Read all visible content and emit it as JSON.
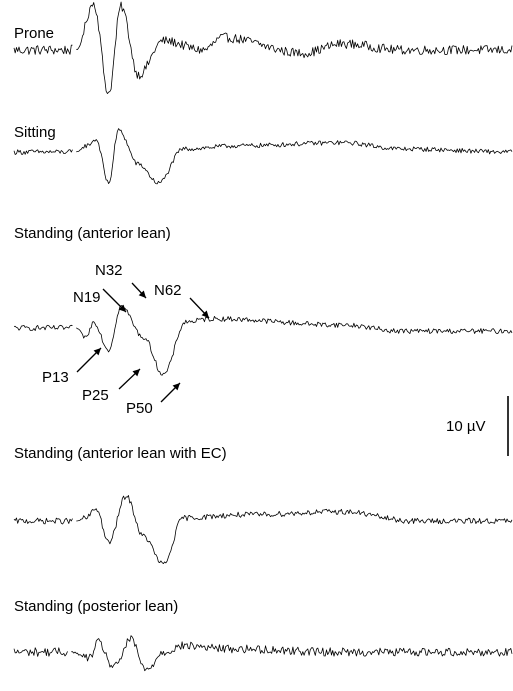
{
  "chart_data": {
    "type": "line",
    "title": "",
    "xlabel": "",
    "ylabel": "",
    "units": "µV",
    "scale_bar": {
      "label": "10 µV",
      "value": 10
    },
    "series": [
      {
        "name": "Prone",
        "baseline": [
          0.0,
          0.12
        ],
        "peaks": [
          [
            0.16,
            15
          ],
          [
            0.19,
            -14
          ],
          [
            0.215,
            14
          ],
          [
            0.25,
            -8
          ],
          [
            0.3,
            3
          ],
          [
            0.38,
            0
          ],
          [
            0.42,
            4
          ],
          [
            0.58,
            -1
          ],
          [
            0.66,
            2
          ],
          [
            0.78,
            0
          ],
          [
            1.0,
            0
          ]
        ],
        "noise": 2.0
      },
      {
        "name": "Sitting",
        "baseline": [
          0.0,
          0.12
        ],
        "peaks": [
          [
            0.145,
            2
          ],
          [
            0.165,
            4
          ],
          [
            0.19,
            -10
          ],
          [
            0.21,
            7
          ],
          [
            0.25,
            -4
          ],
          [
            0.29,
            -10
          ],
          [
            0.34,
            1
          ],
          [
            0.45,
            2
          ],
          [
            0.66,
            3
          ],
          [
            0.78,
            1
          ],
          [
            1.0,
            0
          ]
        ],
        "noise": 1.0
      },
      {
        "name": "Standing (anterior lean)",
        "baseline": [
          0.0,
          0.12
        ],
        "peaks": [
          [
            0.145,
            -3
          ],
          [
            0.16,
            2
          ],
          [
            0.19,
            -7
          ],
          [
            0.215,
            7
          ],
          [
            0.26,
            -3
          ],
          [
            0.3,
            -15
          ],
          [
            0.345,
            2
          ],
          [
            0.4,
            3
          ],
          [
            0.66,
            1
          ],
          [
            0.78,
            -1
          ],
          [
            1.0,
            -1
          ]
        ],
        "noise": 1.1,
        "components": [
          {
            "label": "P13",
            "latency": 13
          },
          {
            "label": "N19",
            "latency": 19
          },
          {
            "label": "P25",
            "latency": 25
          },
          {
            "label": "N32",
            "latency": 32
          },
          {
            "label": "P50",
            "latency": 50
          },
          {
            "label": "N62",
            "latency": 62
          }
        ]
      },
      {
        "name": "Standing (anterior lean with EC)",
        "baseline": [
          0.0,
          0.12
        ],
        "peaks": [
          [
            0.145,
            1
          ],
          [
            0.165,
            4
          ],
          [
            0.19,
            -7
          ],
          [
            0.225,
            8
          ],
          [
            0.26,
            -5
          ],
          [
            0.3,
            -14
          ],
          [
            0.34,
            1
          ],
          [
            0.46,
            2
          ],
          [
            0.66,
            3
          ],
          [
            0.8,
            0
          ],
          [
            1.0,
            0
          ]
        ],
        "noise": 1.2
      },
      {
        "name": "Standing (posterior lean)",
        "baseline": [
          0.0,
          0.11
        ],
        "peaks": [
          [
            0.15,
            -2
          ],
          [
            0.17,
            3
          ],
          [
            0.2,
            -5
          ],
          [
            0.235,
            4
          ],
          [
            0.265,
            -6
          ],
          [
            0.3,
            0
          ],
          [
            0.34,
            2
          ],
          [
            0.44,
            1
          ],
          [
            0.66,
            0
          ],
          [
            1.0,
            0
          ]
        ],
        "noise": 1.8
      }
    ]
  }
}
